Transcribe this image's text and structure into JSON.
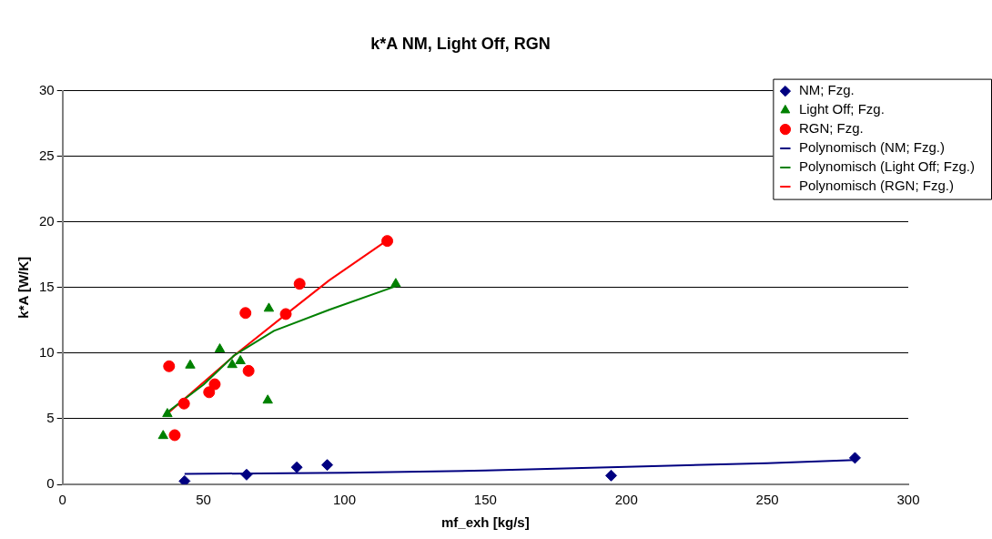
{
  "chart_data": {
    "type": "scatter",
    "title": "k*A NM, Light Off, RGN",
    "xlabel": "mf_exh [kg/s]",
    "ylabel": "k*A [W/K]",
    "xlim": [
      0,
      300
    ],
    "xticks": [
      0,
      50,
      100,
      150,
      200,
      250,
      300
    ],
    "ylim": [
      0,
      30
    ],
    "yticks": [
      0,
      5,
      10,
      15,
      20,
      25,
      30
    ],
    "grid": "y",
    "legend": "top right",
    "series": [
      {
        "name": "NM; Fzg.",
        "type": "scatter",
        "marker": "diamond",
        "color": "#000080",
        "x": [
          43.3,
          65.3,
          83.1,
          93.9,
          194.6,
          281.1
        ],
        "values": [
          0.25,
          0.74,
          1.3,
          1.48,
          0.67,
          2.02
        ]
      },
      {
        "name": "Light Off; Fzg.",
        "type": "scatter",
        "marker": "triangle",
        "color": "#008000",
        "x": [
          35.7,
          37.2,
          45.3,
          55.8,
          60.2,
          63.1,
          73.2,
          72.8,
          118.2
        ],
        "values": [
          3.7,
          5.37,
          9.07,
          10.3,
          9.11,
          9.4,
          13.4,
          6.4,
          15.28
        ]
      },
      {
        "name": "RGN; Fzg.",
        "type": "scatter",
        "marker": "circle",
        "color": "#ff0000",
        "x": [
          37.8,
          43.1,
          39.8,
          52.0,
          54.0,
          64.9,
          66.0,
          79.2,
          84.1,
          115.2
        ],
        "values": [
          9.0,
          6.16,
          3.75,
          7.02,
          7.63,
          13.06,
          8.65,
          12.98,
          15.28,
          18.55
        ]
      },
      {
        "name": "Polynomisch (NM; Fzg.)",
        "type": "line",
        "marker": "none",
        "color": "#000080",
        "x": [
          43.3,
          100,
          150,
          200,
          250,
          281.1
        ],
        "values": [
          0.8,
          0.88,
          1.05,
          1.33,
          1.62,
          1.85
        ]
      },
      {
        "name": "Polynomisch (Light Off; Fzg.)",
        "type": "line",
        "marker": "none",
        "color": "#008000",
        "x": [
          37.8,
          50,
          61,
          75,
          94.6,
          118.2
        ],
        "values": [
          5.6,
          7.6,
          9.85,
          11.7,
          13.3,
          15.1
        ]
      },
      {
        "name": "Polynomisch (RGN; Fzg.)",
        "type": "line",
        "marker": "none",
        "color": "#ff0000",
        "x": [
          37.8,
          61.1,
          79.2,
          94.6,
          115.2
        ],
        "values": [
          5.5,
          9.85,
          12.95,
          15.55,
          18.6
        ]
      }
    ]
  }
}
